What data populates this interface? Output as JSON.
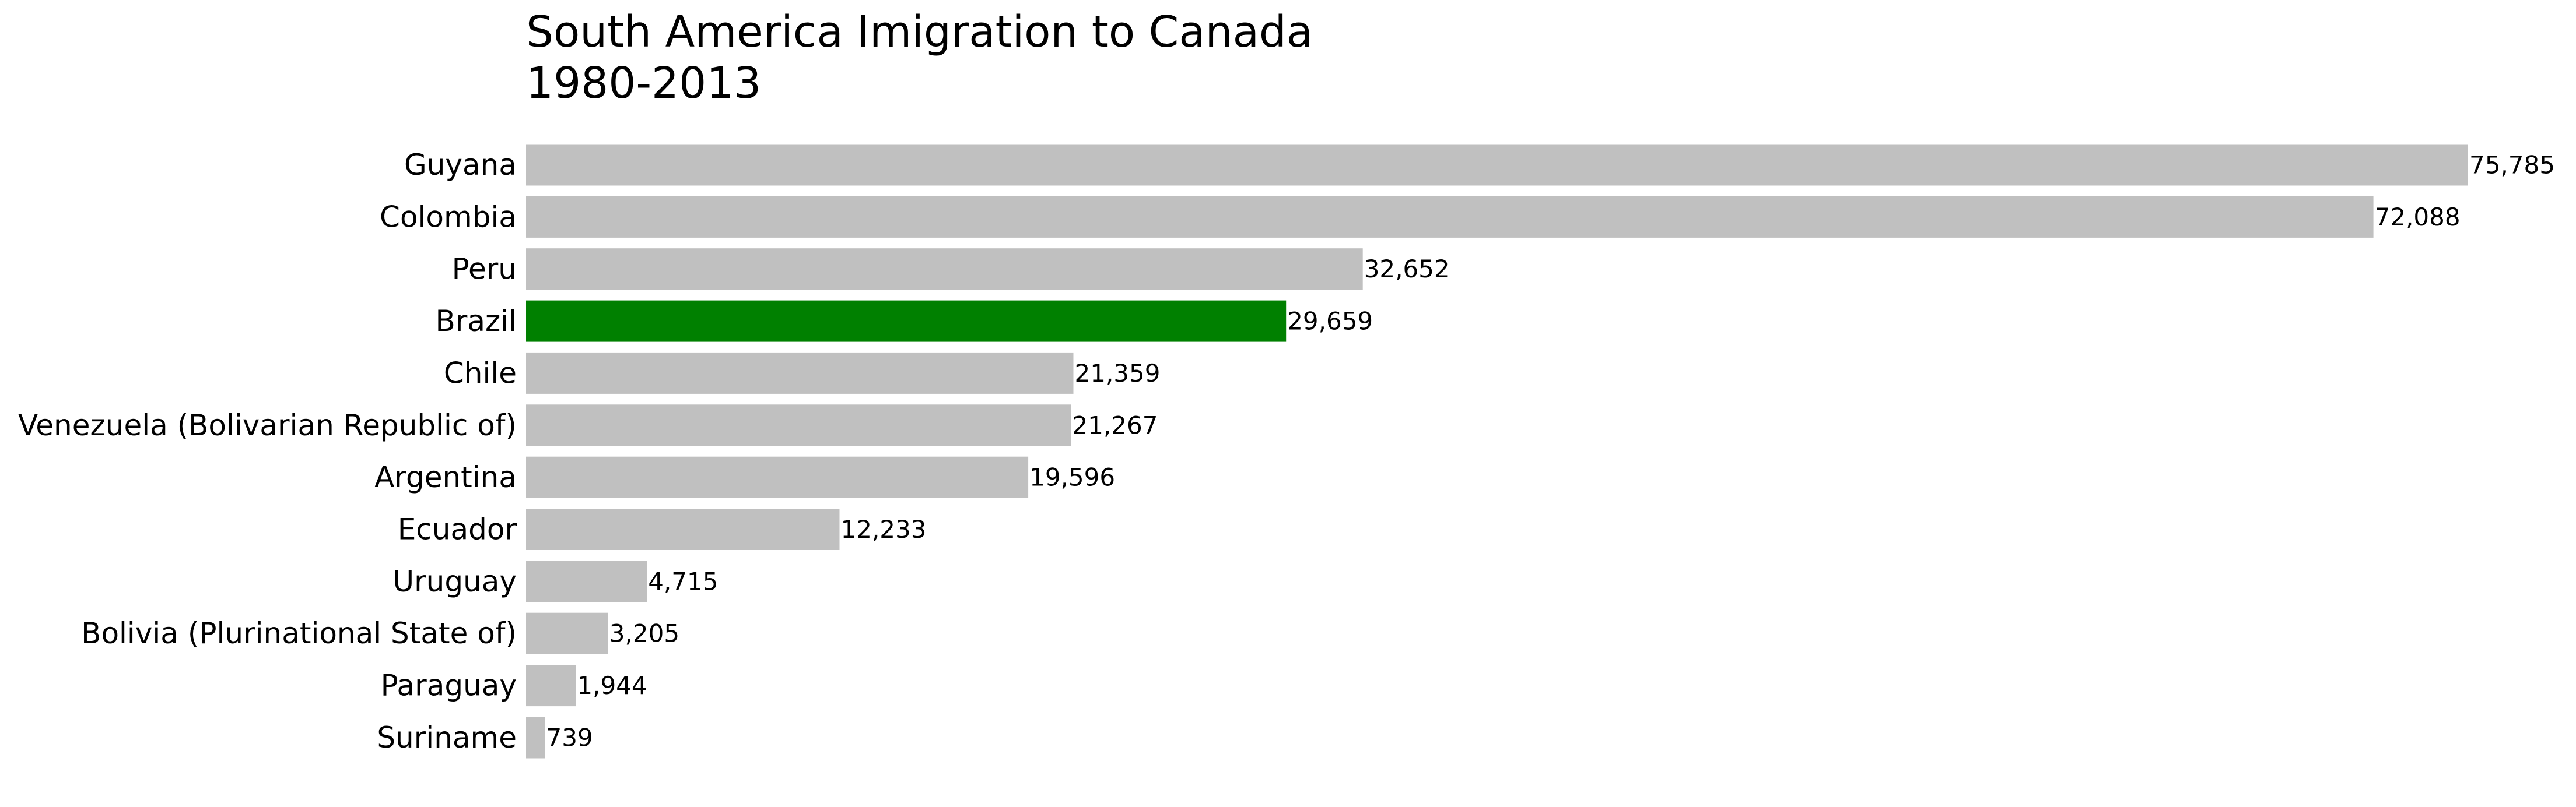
{
  "chart_data": {
    "type": "bar",
    "orientation": "horizontal",
    "title_lines": [
      "South America Imigration to Canada",
      "1980-2013"
    ],
    "xlabel": "",
    "ylabel": "",
    "categories": [
      "Guyana",
      "Colombia",
      "Peru",
      "Brazil",
      "Chile",
      "Venezuela (Bolivarian Republic of)",
      "Argentina",
      "Ecuador",
      "Uruguay",
      "Bolivia (Plurinational State of)",
      "Paraguay",
      "Suriname"
    ],
    "values": [
      75785,
      72088,
      32652,
      29659,
      21359,
      21267,
      19596,
      12233,
      4715,
      3205,
      1944,
      739
    ],
    "value_labels": [
      "75,785",
      "72,088",
      "32,652",
      "29,659",
      "21,359",
      "21,267",
      "19,596",
      "12,233",
      "4,715",
      "3,205",
      "1,944",
      "739"
    ],
    "xlim": [
      0,
      75785
    ],
    "highlight": "Brazil",
    "colors": {
      "default_bar": "#c0c0c0",
      "highlight_bar": "#008000",
      "text": "#000000",
      "background": "#ffffff"
    },
    "grid": false,
    "axes_visible": false,
    "legend": "none"
  }
}
